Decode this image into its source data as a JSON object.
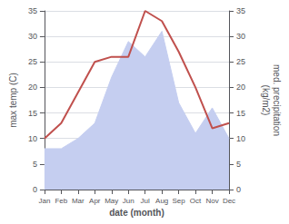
{
  "chart_data": {
    "type": "line",
    "categories": [
      "Jan",
      "Feb",
      "Mar",
      "Apr",
      "May",
      "Jun",
      "Jul",
      "Aug",
      "Sep",
      "Oct",
      "Nov",
      "Dec"
    ],
    "xlabel": "date (month)",
    "ylabel": "max temp (C)",
    "y2label": "med. precipitation\n(kg/m2)",
    "series": [
      {
        "type": "area",
        "color": "#c5cef0",
        "values": [
          8,
          8,
          10,
          13,
          22,
          29,
          26,
          31,
          17,
          11,
          16,
          10
        ]
      },
      {
        "type": "line",
        "color": "#c0504d",
        "axis": "y2",
        "values": [
          10,
          13,
          19,
          25,
          26,
          26,
          35,
          33,
          27,
          20,
          12,
          13
        ]
      }
    ],
    "ylim": [
      0,
      35
    ],
    "yticks": [
      0,
      5,
      10,
      15,
      20,
      25,
      30,
      35
    ],
    "y2lim": [
      0,
      35
    ],
    "y2ticks": [
      0,
      5,
      10,
      15,
      20,
      25,
      30,
      35
    ],
    "grid": true
  }
}
